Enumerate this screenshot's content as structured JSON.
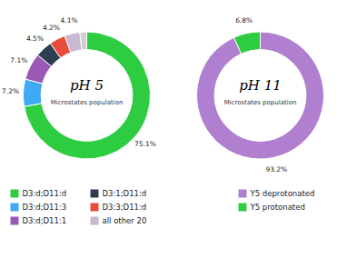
{
  "chart_data": [
    {
      "type": "donut",
      "title": "pH 5",
      "subtitle": "Microstates population",
      "categories": [
        "D3:d;D11:d",
        "D3:d;D11:3",
        "D3:d;D11:1",
        "D3:1;D11:d",
        "D3:3;D11:d",
        "all other 20",
        null
      ],
      "values": [
        75.1,
        7.2,
        7.1,
        4.5,
        4.2,
        4.1,
        1.8
      ],
      "value_labels": [
        "75.1%",
        "7.2%",
        "7.1%",
        "4.5%",
        "4.2%",
        "4.1%",
        null
      ],
      "colors": [
        "#2ecc40",
        "#3fa9f5",
        "#9b59b6",
        "#2c3e50",
        "#e74c3c",
        "#c8b8d0",
        "#d0d0d0"
      ],
      "data_labels": true
    },
    {
      "type": "donut",
      "title": "pH 11",
      "subtitle": "Microstates population",
      "categories": [
        "Y5 deprotonated",
        "Y5 protonated"
      ],
      "values": [
        93.2,
        6.8
      ],
      "value_labels": [
        "93.2%",
        "6.8%"
      ],
      "colors": [
        "#b07fcf",
        "#2ecc40"
      ],
      "data_labels": true
    }
  ]
}
